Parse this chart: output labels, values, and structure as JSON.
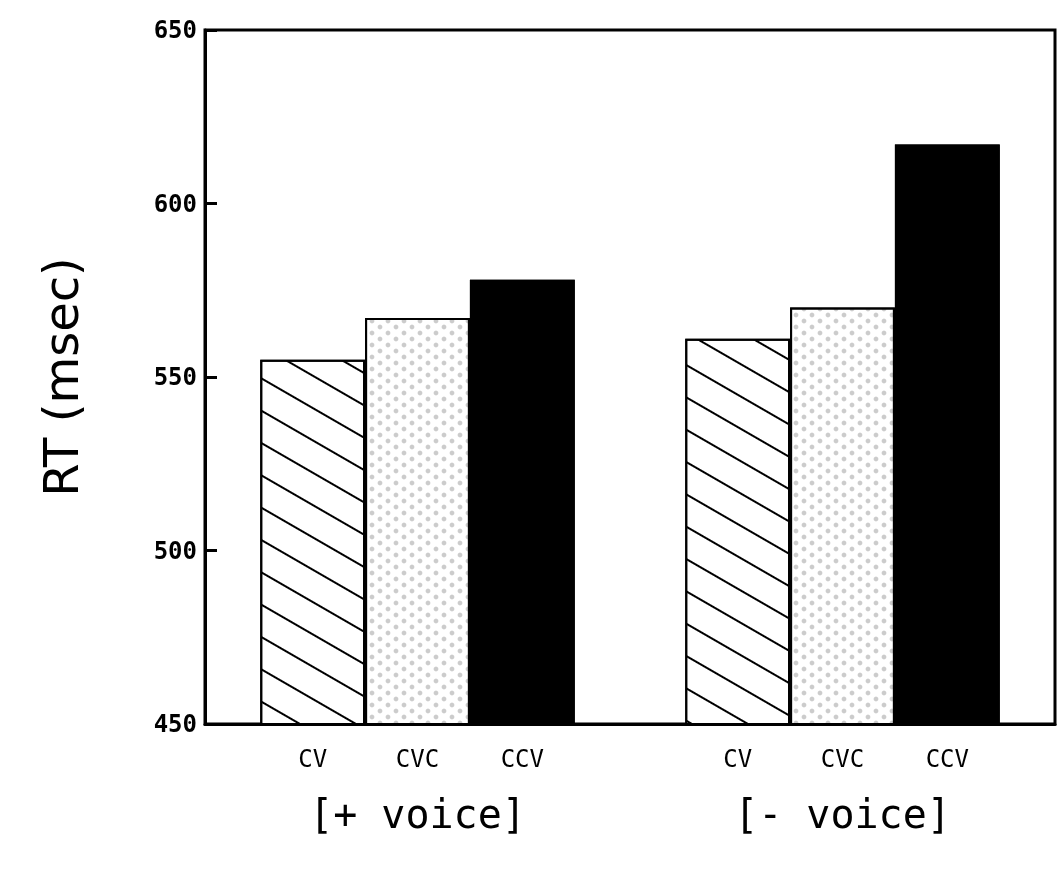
{
  "chart_data": {
    "type": "bar",
    "ylabel": "RT (msec)",
    "categories": [
      "[+ voice]",
      "[- voice]"
    ],
    "series": [
      {
        "name": "CV",
        "color": "#ffffff",
        "values": [
          555,
          561
        ]
      },
      {
        "name": "CVC",
        "color": "#ffffff",
        "values": [
          567,
          570
        ]
      },
      {
        "name": "CCV",
        "color": "#000000",
        "values": [
          578,
          617
        ]
      }
    ],
    "ylim": [
      450,
      650
    ],
    "yticks": [
      450,
      500,
      550,
      600,
      650
    ],
    "grid": false,
    "legend": false
  }
}
